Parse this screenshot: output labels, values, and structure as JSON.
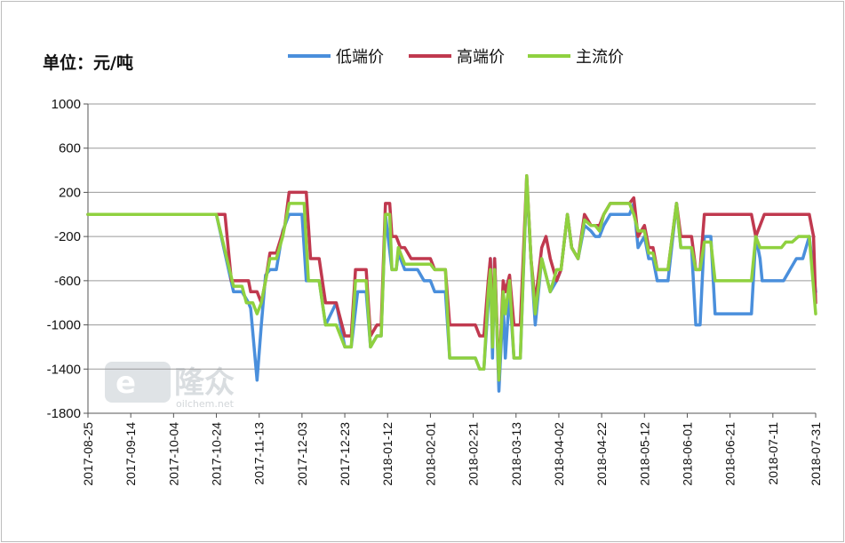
{
  "chart_data": {
    "type": "line",
    "unit_label": "单位：元/吨",
    "ylim": [
      -1800,
      1000
    ],
    "yticks": [
      1000,
      600,
      200,
      -200,
      -600,
      -1000,
      -1400,
      -1800
    ],
    "x_ticks": [
      "2017-08-25",
      "2017-09-14",
      "2017-10-04",
      "2017-10-24",
      "2017-11-13",
      "2017-12-03",
      "2017-12-23",
      "2018-01-12",
      "2018-02-01",
      "2018-02-21",
      "2018-03-13",
      "2018-04-02",
      "2018-04-22",
      "2018-05-12",
      "2018-06-01",
      "2018-06-21",
      "2018-07-11",
      "2018-07-31"
    ],
    "x_start": "2017-08-25",
    "x_end": "2018-07-31",
    "grid": true,
    "legend_position": "top",
    "series": [
      {
        "name": "低端价",
        "color": "#4a8fdc",
        "points": [
          [
            "2017-08-25",
            0
          ],
          [
            "2017-10-24",
            0
          ],
          [
            "2017-11-01",
            -700
          ],
          [
            "2017-11-05",
            -700
          ],
          [
            "2017-11-08",
            -800
          ],
          [
            "2017-11-09",
            -850
          ],
          [
            "2017-11-12",
            -1500
          ],
          [
            "2017-11-14",
            -1000
          ],
          [
            "2017-11-16",
            -550
          ],
          [
            "2017-11-18",
            -500
          ],
          [
            "2017-11-21",
            -500
          ],
          [
            "2017-11-24",
            -150
          ],
          [
            "2017-11-27",
            0
          ],
          [
            "2017-12-03",
            0
          ],
          [
            "2017-12-05",
            -600
          ],
          [
            "2017-12-11",
            -600
          ],
          [
            "2017-12-14",
            -1000
          ],
          [
            "2017-12-19",
            -800
          ],
          [
            "2017-12-23",
            -1200
          ],
          [
            "2017-12-26",
            -1200
          ],
          [
            "2017-12-29",
            -700
          ],
          [
            "2018-01-02",
            -700
          ],
          [
            "2018-01-04",
            -1200
          ],
          [
            "2018-01-07",
            -1100
          ],
          [
            "2018-01-09",
            -1100
          ],
          [
            "2018-01-11",
            0
          ],
          [
            "2018-01-14",
            -500
          ],
          [
            "2018-01-16",
            -500
          ],
          [
            "2018-01-17",
            -350
          ],
          [
            "2018-01-20",
            -500
          ],
          [
            "2018-01-26",
            -500
          ],
          [
            "2018-01-29",
            -600
          ],
          [
            "2018-02-01",
            -600
          ],
          [
            "2018-02-03",
            -700
          ],
          [
            "2018-02-08",
            -700
          ],
          [
            "2018-02-10",
            -1300
          ],
          [
            "2018-02-22",
            -1300
          ],
          [
            "2018-02-24",
            -1400
          ],
          [
            "2018-02-26",
            -1400
          ],
          [
            "2018-02-28",
            -800
          ],
          [
            "2018-03-01",
            -400
          ],
          [
            "2018-03-02",
            -1300
          ],
          [
            "2018-03-03",
            -400
          ],
          [
            "2018-03-05",
            -1600
          ],
          [
            "2018-03-07",
            -800
          ],
          [
            "2018-03-08",
            -1300
          ],
          [
            "2018-03-10",
            -700
          ],
          [
            "2018-03-12",
            -1300
          ],
          [
            "2018-03-15",
            -1300
          ],
          [
            "2018-03-18",
            300
          ],
          [
            "2018-03-20",
            -400
          ],
          [
            "2018-03-22",
            -1000
          ],
          [
            "2018-03-25",
            -400
          ],
          [
            "2018-03-29",
            -700
          ],
          [
            "2018-04-01",
            -600
          ],
          [
            "2018-04-03",
            -500
          ],
          [
            "2018-04-06",
            0
          ],
          [
            "2018-04-08",
            -300
          ],
          [
            "2018-04-11",
            -400
          ],
          [
            "2018-04-14",
            -100
          ],
          [
            "2018-04-17",
            -150
          ],
          [
            "2018-04-19",
            -200
          ],
          [
            "2018-04-21",
            -200
          ],
          [
            "2018-04-23",
            -100
          ],
          [
            "2018-04-26",
            0
          ],
          [
            "2018-05-05",
            0
          ],
          [
            "2018-05-07",
            100
          ],
          [
            "2018-05-09",
            -300
          ],
          [
            "2018-05-12",
            -200
          ],
          [
            "2018-05-14",
            -400
          ],
          [
            "2018-05-16",
            -400
          ],
          [
            "2018-05-18",
            -600
          ],
          [
            "2018-05-23",
            -600
          ],
          [
            "2018-05-27",
            100
          ],
          [
            "2018-05-29",
            -300
          ],
          [
            "2018-06-03",
            -300
          ],
          [
            "2018-06-05",
            -1000
          ],
          [
            "2018-06-07",
            -1000
          ],
          [
            "2018-06-09",
            -200
          ],
          [
            "2018-06-12",
            -200
          ],
          [
            "2018-06-14",
            -900
          ],
          [
            "2018-07-01",
            -900
          ],
          [
            "2018-07-03",
            -200
          ],
          [
            "2018-07-05",
            -400
          ],
          [
            "2018-07-06",
            -600
          ],
          [
            "2018-07-14",
            -600
          ],
          [
            "2018-07-16",
            -600
          ],
          [
            "2018-07-19",
            -500
          ],
          [
            "2018-07-22",
            -400
          ],
          [
            "2018-07-25",
            -400
          ],
          [
            "2018-07-28",
            -200
          ],
          [
            "2018-07-31",
            -700
          ]
        ]
      },
      {
        "name": "高端价",
        "color": "#c0394f",
        "points": [
          [
            "2017-08-25",
            0
          ],
          [
            "2017-10-28",
            0
          ],
          [
            "2017-10-31",
            -600
          ],
          [
            "2017-11-08",
            -600
          ],
          [
            "2017-11-09",
            -700
          ],
          [
            "2017-11-12",
            -700
          ],
          [
            "2017-11-14",
            -800
          ],
          [
            "2017-11-16",
            -600
          ],
          [
            "2017-11-18",
            -350
          ],
          [
            "2017-11-21",
            -350
          ],
          [
            "2017-11-25",
            -100
          ],
          [
            "2017-11-27",
            200
          ],
          [
            "2017-12-05",
            200
          ],
          [
            "2017-12-07",
            -400
          ],
          [
            "2017-12-11",
            -400
          ],
          [
            "2017-12-14",
            -800
          ],
          [
            "2017-12-19",
            -800
          ],
          [
            "2017-12-23",
            -1100
          ],
          [
            "2017-12-26",
            -1100
          ],
          [
            "2017-12-28",
            -500
          ],
          [
            "2018-01-02",
            -500
          ],
          [
            "2018-01-04",
            -1100
          ],
          [
            "2018-01-07",
            -1000
          ],
          [
            "2018-01-09",
            -1000
          ],
          [
            "2018-01-11",
            100
          ],
          [
            "2018-01-13",
            100
          ],
          [
            "2018-01-14",
            -200
          ],
          [
            "2018-01-16",
            -200
          ],
          [
            "2018-01-18",
            -300
          ],
          [
            "2018-01-20",
            -300
          ],
          [
            "2018-01-23",
            -400
          ],
          [
            "2018-02-01",
            -400
          ],
          [
            "2018-02-03",
            -500
          ],
          [
            "2018-02-08",
            -500
          ],
          [
            "2018-02-10",
            -1000
          ],
          [
            "2018-02-22",
            -1000
          ],
          [
            "2018-02-24",
            -1100
          ],
          [
            "2018-02-26",
            -1100
          ],
          [
            "2018-02-28",
            -600
          ],
          [
            "2018-03-01",
            -400
          ],
          [
            "2018-03-02",
            -1100
          ],
          [
            "2018-03-03",
            -400
          ],
          [
            "2018-03-05",
            -1500
          ],
          [
            "2018-03-07",
            -600
          ],
          [
            "2018-03-08",
            -700
          ],
          [
            "2018-03-10",
            -550
          ],
          [
            "2018-03-12",
            -1000
          ],
          [
            "2018-03-15",
            -1000
          ],
          [
            "2018-03-18",
            350
          ],
          [
            "2018-03-20",
            -400
          ],
          [
            "2018-03-22",
            -800
          ],
          [
            "2018-03-25",
            -300
          ],
          [
            "2018-03-27",
            -200
          ],
          [
            "2018-03-29",
            -400
          ],
          [
            "2018-04-01",
            -600
          ],
          [
            "2018-04-03",
            -500
          ],
          [
            "2018-04-06",
            0
          ],
          [
            "2018-04-08",
            -300
          ],
          [
            "2018-04-11",
            -400
          ],
          [
            "2018-04-14",
            0
          ],
          [
            "2018-04-17",
            -100
          ],
          [
            "2018-04-19",
            -100
          ],
          [
            "2018-04-21",
            -100
          ],
          [
            "2018-04-23",
            0
          ],
          [
            "2018-04-26",
            100
          ],
          [
            "2018-05-05",
            100
          ],
          [
            "2018-05-07",
            150
          ],
          [
            "2018-05-09",
            -200
          ],
          [
            "2018-05-12",
            -100
          ],
          [
            "2018-05-14",
            -300
          ],
          [
            "2018-05-16",
            -300
          ],
          [
            "2018-05-18",
            -500
          ],
          [
            "2018-05-23",
            -500
          ],
          [
            "2018-05-27",
            100
          ],
          [
            "2018-05-29",
            -200
          ],
          [
            "2018-06-03",
            -200
          ],
          [
            "2018-06-05",
            -500
          ],
          [
            "2018-06-07",
            -500
          ],
          [
            "2018-06-09",
            0
          ],
          [
            "2018-07-01",
            0
          ],
          [
            "2018-07-03",
            -200
          ],
          [
            "2018-07-05",
            -100
          ],
          [
            "2018-07-07",
            0
          ],
          [
            "2018-07-28",
            0
          ],
          [
            "2018-07-30",
            -200
          ],
          [
            "2018-07-31",
            -800
          ]
        ]
      },
      {
        "name": "主流价",
        "color": "#8fd13f",
        "points": [
          [
            "2017-08-25",
            0
          ],
          [
            "2017-10-24",
            0
          ],
          [
            "2017-11-01",
            -650
          ],
          [
            "2017-11-05",
            -650
          ],
          [
            "2017-11-07",
            -800
          ],
          [
            "2017-11-10",
            -800
          ],
          [
            "2017-11-12",
            -900
          ],
          [
            "2017-11-14",
            -800
          ],
          [
            "2017-11-16",
            -600
          ],
          [
            "2017-11-18",
            -400
          ],
          [
            "2017-11-21",
            -400
          ],
          [
            "2017-11-24",
            -200
          ],
          [
            "2017-11-27",
            100
          ],
          [
            "2017-12-04",
            100
          ],
          [
            "2017-12-06",
            -600
          ],
          [
            "2017-12-11",
            -600
          ],
          [
            "2017-12-14",
            -1000
          ],
          [
            "2017-12-19",
            -1000
          ],
          [
            "2017-12-23",
            -1200
          ],
          [
            "2017-12-26",
            -1200
          ],
          [
            "2017-12-28",
            -600
          ],
          [
            "2018-01-02",
            -600
          ],
          [
            "2018-01-04",
            -1200
          ],
          [
            "2018-01-07",
            -1100
          ],
          [
            "2018-01-09",
            -1100
          ],
          [
            "2018-01-11",
            0
          ],
          [
            "2018-01-13",
            0
          ],
          [
            "2018-01-14",
            -500
          ],
          [
            "2018-01-16",
            -500
          ],
          [
            "2018-01-17",
            -300
          ],
          [
            "2018-01-20",
            -450
          ],
          [
            "2018-02-01",
            -450
          ],
          [
            "2018-02-03",
            -500
          ],
          [
            "2018-02-08",
            -500
          ],
          [
            "2018-02-10",
            -1300
          ],
          [
            "2018-02-22",
            -1300
          ],
          [
            "2018-02-24",
            -1400
          ],
          [
            "2018-02-26",
            -1400
          ],
          [
            "2018-02-28",
            -700
          ],
          [
            "2018-03-01",
            -500
          ],
          [
            "2018-03-02",
            -1200
          ],
          [
            "2018-03-03",
            -500
          ],
          [
            "2018-03-05",
            -1500
          ],
          [
            "2018-03-07",
            -700
          ],
          [
            "2018-03-08",
            -900
          ],
          [
            "2018-03-10",
            -600
          ],
          [
            "2018-03-12",
            -1300
          ],
          [
            "2018-03-15",
            -1300
          ],
          [
            "2018-03-18",
            350
          ],
          [
            "2018-03-20",
            -400
          ],
          [
            "2018-03-22",
            -900
          ],
          [
            "2018-03-25",
            -400
          ],
          [
            "2018-03-29",
            -700
          ],
          [
            "2018-04-01",
            -500
          ],
          [
            "2018-04-03",
            -500
          ],
          [
            "2018-04-06",
            0
          ],
          [
            "2018-04-08",
            -300
          ],
          [
            "2018-04-11",
            -400
          ],
          [
            "2018-04-14",
            -50
          ],
          [
            "2018-04-17",
            -100
          ],
          [
            "2018-04-19",
            -100
          ],
          [
            "2018-04-21",
            -150
          ],
          [
            "2018-04-23",
            0
          ],
          [
            "2018-04-26",
            100
          ],
          [
            "2018-05-05",
            100
          ],
          [
            "2018-05-07",
            0
          ],
          [
            "2018-05-09",
            -150
          ],
          [
            "2018-05-12",
            -150
          ],
          [
            "2018-05-14",
            -350
          ],
          [
            "2018-05-16",
            -350
          ],
          [
            "2018-05-18",
            -500
          ],
          [
            "2018-05-23",
            -500
          ],
          [
            "2018-05-27",
            100
          ],
          [
            "2018-05-29",
            -300
          ],
          [
            "2018-06-03",
            -300
          ],
          [
            "2018-06-05",
            -500
          ],
          [
            "2018-06-07",
            -500
          ],
          [
            "2018-06-09",
            -250
          ],
          [
            "2018-06-12",
            -250
          ],
          [
            "2018-06-14",
            -600
          ],
          [
            "2018-07-01",
            -600
          ],
          [
            "2018-07-03",
            -200
          ],
          [
            "2018-07-05",
            -300
          ],
          [
            "2018-07-15",
            -300
          ],
          [
            "2018-07-17",
            -250
          ],
          [
            "2018-07-20",
            -250
          ],
          [
            "2018-07-23",
            -200
          ],
          [
            "2018-07-28",
            -200
          ],
          [
            "2018-07-31",
            -900
          ]
        ]
      }
    ]
  },
  "watermark": {
    "main": "e隆众",
    "sub": "oilchem.net"
  }
}
